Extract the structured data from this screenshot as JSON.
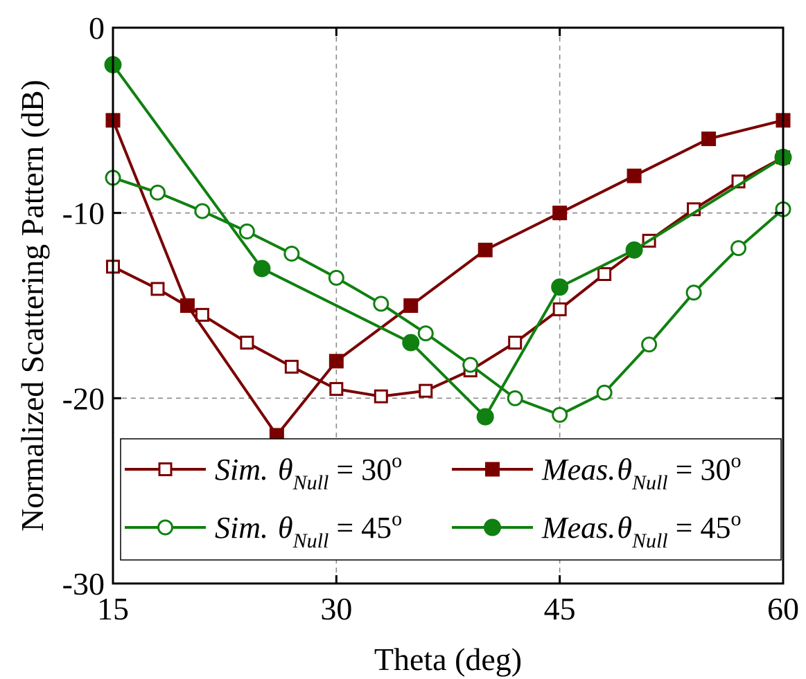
{
  "chart_data": {
    "type": "line",
    "xlabel": "Theta (deg)",
    "ylabel": "Normalized Scattering Pattern (dB)",
    "xlim": [
      15,
      60
    ],
    "ylim": [
      -30,
      0
    ],
    "xticks": [
      15,
      30,
      45,
      60
    ],
    "yticks": [
      0,
      -10,
      -20,
      -30
    ],
    "x_tick_labels": [
      "15",
      "30",
      "45",
      "60"
    ],
    "y_tick_labels": [
      "0",
      "-10",
      "-20",
      "-30"
    ],
    "grid": true,
    "legend_position": "lower-center",
    "series": [
      {
        "name": "Sim. θNull = 30o",
        "legend": {
          "prefix": "Sim.",
          "symbol": "θ",
          "subscript": "Null",
          "relation": "= 30",
          "superscript": "o"
        },
        "color": "#7a0000",
        "marker": "square-open",
        "x": [
          15,
          18,
          21,
          24,
          27,
          30,
          33,
          36,
          39,
          42,
          45,
          48,
          51,
          54,
          57,
          60
        ],
        "y": [
          -12.9,
          -14.1,
          -15.5,
          -17.0,
          -18.3,
          -19.5,
          -19.9,
          -19.6,
          -18.5,
          -17.0,
          -15.2,
          -13.3,
          -11.5,
          -9.8,
          -8.3,
          -7.0
        ]
      },
      {
        "name": "Meas. θNull = 30o",
        "legend": {
          "prefix": "Meas.",
          "symbol": "θ",
          "subscript": "Null",
          "relation": "= 30",
          "superscript": "o"
        },
        "color": "#7a0000",
        "marker": "square-filled",
        "x": [
          15,
          20,
          26,
          30,
          35,
          40,
          45,
          50,
          55,
          60
        ],
        "y": [
          -5.0,
          -15.0,
          -22.0,
          -18.0,
          -15.0,
          -12.0,
          -10.0,
          -8.0,
          -6.0,
          -5.0
        ]
      },
      {
        "name": "Sim. θNull = 45o",
        "legend": {
          "prefix": "Sim.",
          "symbol": "θ",
          "subscript": "Null",
          "relation": "= 45",
          "superscript": "o"
        },
        "color": "#108010",
        "marker": "circle-open",
        "x": [
          15,
          18,
          21,
          24,
          27,
          30,
          33,
          36,
          39,
          42,
          45,
          48,
          51,
          54,
          57,
          60
        ],
        "y": [
          -8.1,
          -8.9,
          -9.9,
          -11.0,
          -12.2,
          -13.5,
          -14.9,
          -16.5,
          -18.2,
          -20.0,
          -20.9,
          -19.7,
          -17.1,
          -14.3,
          -11.9,
          -9.8
        ]
      },
      {
        "name": "Meas. θNull = 45o",
        "legend": {
          "prefix": "Meas.",
          "symbol": "θ",
          "subscript": "Null",
          "relation": "= 45",
          "superscript": "o"
        },
        "color": "#108010",
        "marker": "circle-filled",
        "x": [
          15,
          25,
          35,
          40,
          45,
          50,
          60
        ],
        "y": [
          -2.0,
          -13.0,
          -17.0,
          -21.0,
          -14.0,
          -12.0,
          -7.0
        ]
      }
    ]
  }
}
